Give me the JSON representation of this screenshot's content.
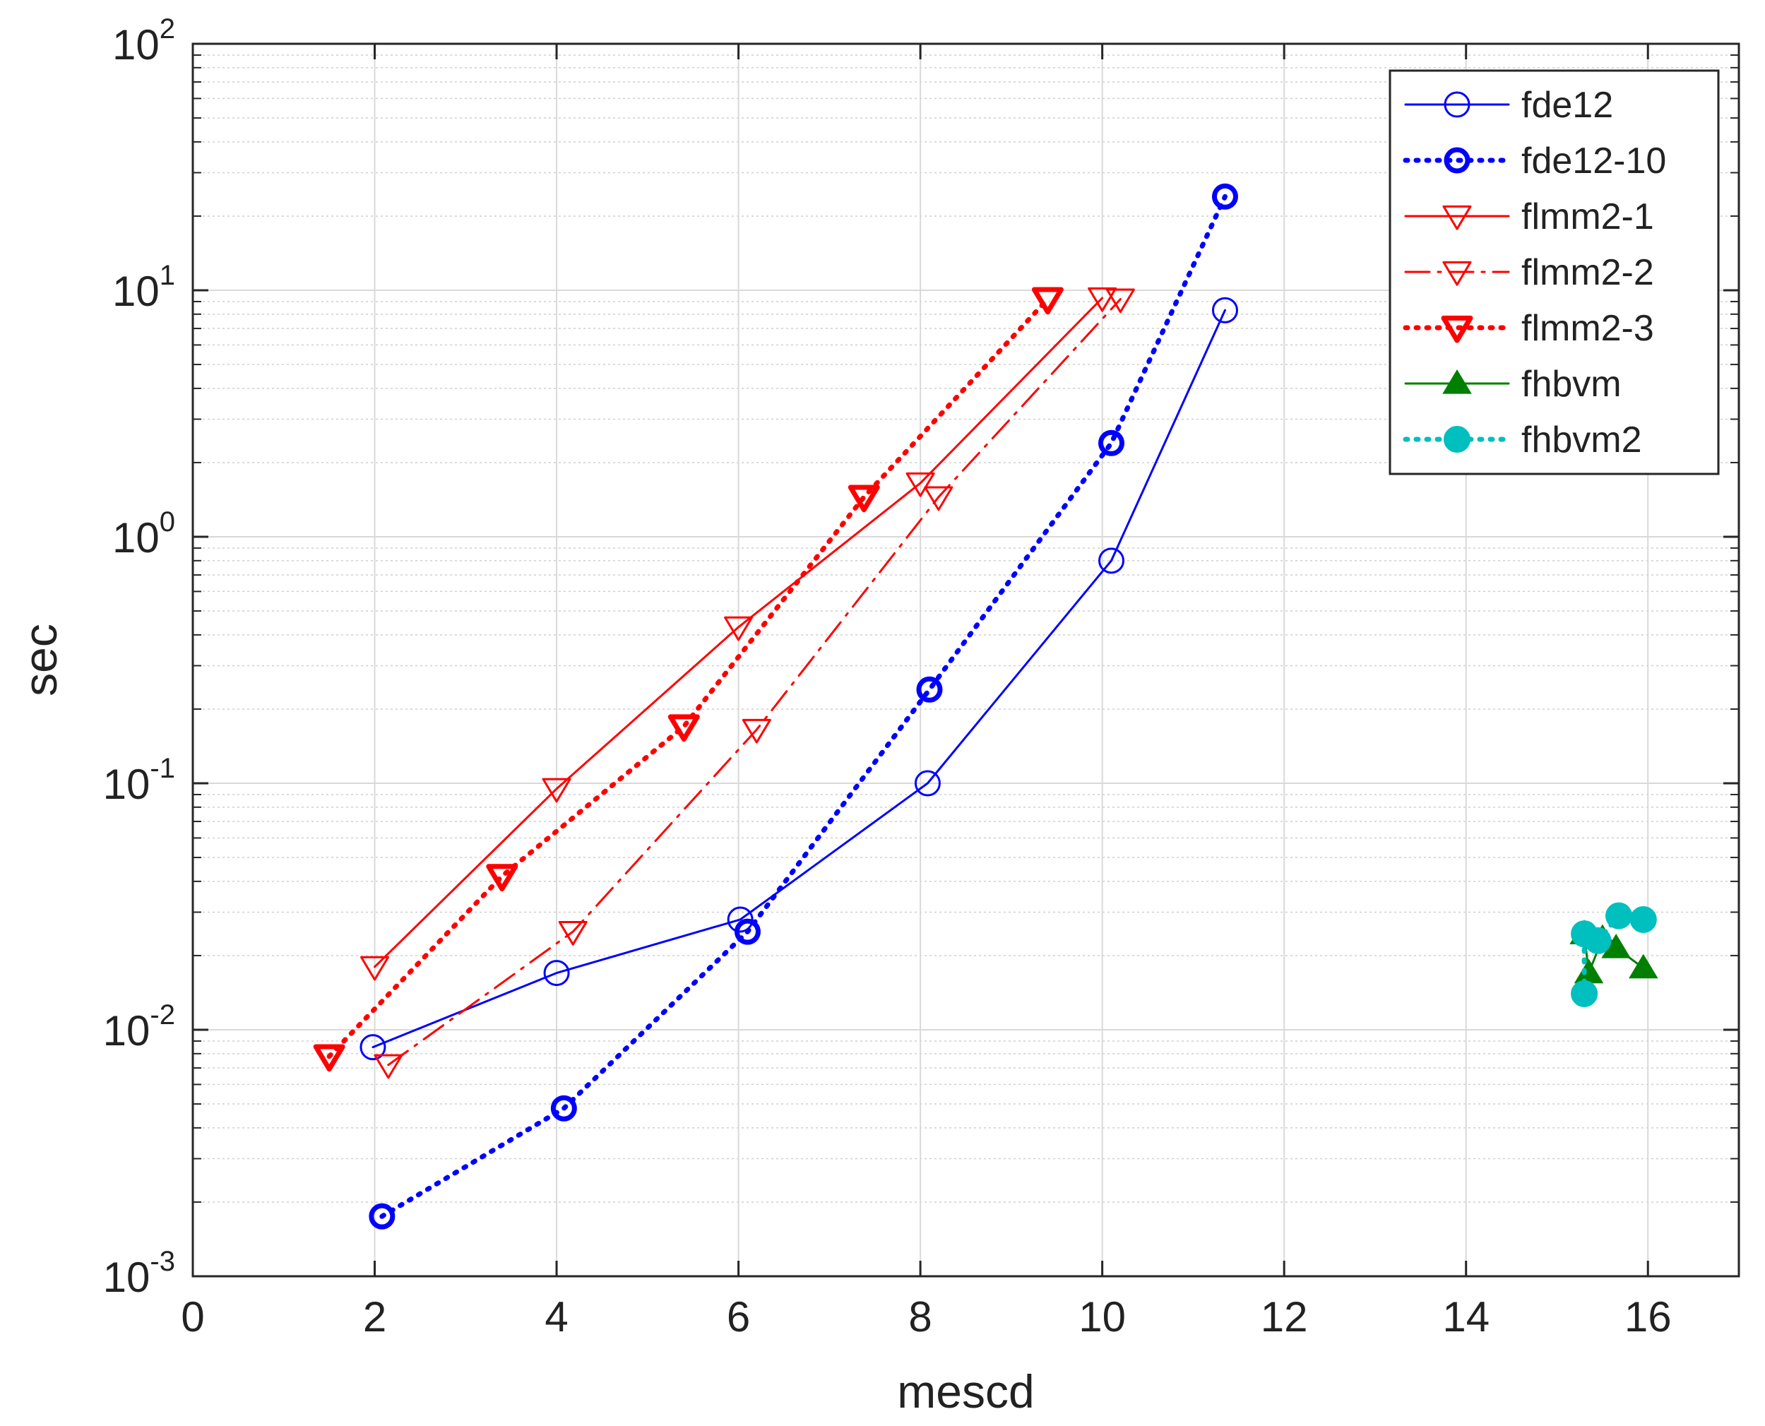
{
  "chart_data": {
    "type": "line",
    "xlabel": "mescd",
    "ylabel": "sec",
    "xlim": [
      0,
      17
    ],
    "ylim": [
      0.001,
      100
    ],
    "yscale": "log",
    "grid": true,
    "minor_grid": true,
    "legend_position": "top-right",
    "x_ticks": [
      "0",
      "2",
      "4",
      "6",
      "8",
      "10",
      "12",
      "14",
      "16"
    ],
    "y_ticks": [
      {
        "base": "10",
        "exp": "-3"
      },
      {
        "base": "10",
        "exp": "-2"
      },
      {
        "base": "10",
        "exp": "-1"
      },
      {
        "base": "10",
        "exp": "0"
      },
      {
        "base": "10",
        "exp": "1"
      },
      {
        "base": "10",
        "exp": "2"
      }
    ],
    "series": [
      {
        "name": "fde12",
        "color": "#0000ff",
        "line": "solid",
        "marker": "circle",
        "bold": false,
        "x": [
          1.98,
          4.0,
          6.02,
          8.08,
          10.1,
          11.35
        ],
        "y": [
          0.0085,
          0.017,
          0.028,
          0.1,
          0.8,
          8.3
        ]
      },
      {
        "name": "fde12-10",
        "color": "#0000ff",
        "line": "dotted",
        "marker": "circle",
        "bold": true,
        "x": [
          2.08,
          4.08,
          6.1,
          8.1,
          10.1,
          11.35
        ],
        "y": [
          0.00175,
          0.0048,
          0.025,
          0.24,
          2.4,
          24
        ]
      },
      {
        "name": "flmm2-1",
        "color": "#ff0000",
        "line": "solid",
        "marker": "triangle-down",
        "bold": false,
        "x": [
          2.0,
          4.0,
          6.0,
          8.0,
          10.0
        ],
        "y": [
          0.018,
          0.095,
          0.43,
          1.65,
          9.3
        ]
      },
      {
        "name": "flmm2-2",
        "color": "#ff0000",
        "line": "dashdot",
        "marker": "triangle-down",
        "bold": false,
        "x": [
          2.15,
          4.18,
          6.2,
          8.2,
          10.2
        ],
        "y": [
          0.0072,
          0.025,
          0.165,
          1.45,
          9.2
        ]
      },
      {
        "name": "flmm2-3",
        "color": "#ff0000",
        "line": "dotted",
        "marker": "triangle-down",
        "bold": true,
        "x": [
          1.5,
          3.4,
          5.4,
          7.38,
          9.4
        ],
        "y": [
          0.0078,
          0.042,
          0.17,
          1.45,
          9.2
        ]
      },
      {
        "name": "fhbvm",
        "color": "#007f00",
        "line": "solid",
        "marker": "triangle-up",
        "bold": false,
        "x": [
          15.3,
          15.35,
          15.5,
          15.65,
          15.95
        ],
        "y": [
          0.0245,
          0.017,
          0.0235,
          0.0215,
          0.0178
        ]
      },
      {
        "name": "fhbvm2",
        "color": "#00bfbf",
        "line": "dotted",
        "marker": "circle-filled",
        "bold": true,
        "x": [
          15.3,
          15.3,
          15.45,
          15.68,
          15.95
        ],
        "y": [
          0.014,
          0.0245,
          0.023,
          0.029,
          0.028
        ]
      }
    ]
  }
}
